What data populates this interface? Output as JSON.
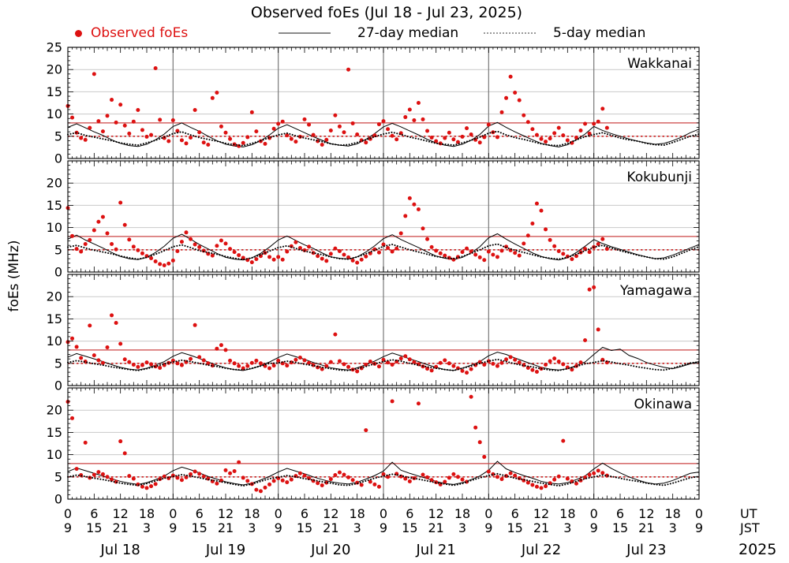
{
  "title": "Observed foEs (Jul 18 - Jul 23, 2025)",
  "legend": {
    "observed_label": "Observed foEs",
    "median27_label": "27-day median",
    "median5_label": "5-day median"
  },
  "colors": {
    "observed": "#dd1111",
    "median": "#000000",
    "threshold_solid": "#cc4444",
    "threshold_dotted": "#cc2222",
    "grid": "#c9c9c9",
    "day_grid": "#787878"
  },
  "axis": {
    "ylabel": "foEs (MHz)",
    "ut_unit": "UT",
    "jst_unit": "JST",
    "year": "2025",
    "ut_ticks": [
      "0",
      "6",
      "12",
      "18",
      "0",
      "6",
      "12",
      "18",
      "0",
      "6",
      "12",
      "18",
      "0",
      "6",
      "12",
      "18",
      "0",
      "6",
      "12",
      "18",
      "0",
      "6",
      "12",
      "18",
      "0"
    ],
    "jst_ticks": [
      "9",
      "15",
      "21",
      "3",
      "9",
      "15",
      "21",
      "3",
      "9",
      "15",
      "21",
      "3",
      "9",
      "15",
      "21",
      "3",
      "9",
      "15",
      "21",
      "3",
      "9",
      "15",
      "21",
      "3",
      "9"
    ],
    "day_labels": [
      "Jul 18",
      "Jul 19",
      "Jul 20",
      "Jul 21",
      "Jul 22",
      "Jul 23"
    ]
  },
  "chart_data": [
    {
      "station": "Wakkanai",
      "type": "scatter",
      "ylim": [
        0,
        25
      ],
      "ytick_labels": [
        0,
        5,
        10,
        15,
        20,
        25
      ],
      "threshold_solid_mhz": 8,
      "threshold_dotted_mhz": 5,
      "observed_step_hours": 1,
      "observed": [
        11.8,
        9.2,
        5.8,
        4.6,
        4.2,
        6.9,
        19.0,
        8.4,
        6.1,
        9.6,
        13.2,
        8.1,
        12.1,
        7.4,
        5.6,
        8.3,
        10.9,
        6.4,
        4.9,
        5.3,
        20.3,
        8.7,
        4.6,
        3.9,
        8.6,
        6.2,
        4.1,
        3.4,
        4.7,
        10.9,
        5.9,
        3.6,
        3.1,
        13.6,
        14.8,
        7.2,
        5.8,
        4.4,
        3.2,
        2.8,
        3.5,
        4.8,
        10.4,
        6.1,
        3.9,
        3.3,
        4.6,
        6.7,
        7.8,
        8.3,
        5.2,
        4.4,
        3.8,
        4.9,
        8.8,
        7.6,
        5.3,
        3.9,
        3.1,
        4.2,
        6.3,
        9.7,
        7.2,
        5.9,
        20.0,
        7.9,
        5.4,
        4.1,
        3.6,
        4.4,
        5.2,
        7.7,
        8.4,
        6.6,
        5.1,
        4.3,
        5.7,
        9.3,
        11.0,
        8.6,
        12.5,
        8.8,
        6.2,
        4.7,
        3.9,
        3.4,
        4.6,
        5.8,
        4.3,
        3.7,
        4.9,
        6.8,
        5.4,
        4.2,
        3.6,
        4.8,
        7.6,
        5.9,
        4.8,
        10.4,
        13.6,
        18.4,
        14.8,
        13.1,
        9.7,
        8.2,
        6.6,
        5.3,
        4.4,
        3.8,
        4.5,
        5.7,
        6.9,
        5.2,
        4.1,
        3.5,
        4.7,
        6.3,
        7.8,
        5.6,
        7.8,
        8.3,
        11.2,
        6.9
      ],
      "median_step_hours": 2,
      "median27": [
        7.0,
        7.8,
        6.9,
        6.0,
        5.2,
        4.2,
        3.4,
        2.9,
        2.7,
        3.2,
        4.2,
        5.5,
        7.2,
        8.0,
        7.0,
        6.1,
        5.0,
        4.0,
        3.2,
        2.8,
        2.6,
        3.1,
        4.0,
        5.3,
        6.8,
        7.6,
        6.7,
        5.8,
        4.9,
        4.1,
        3.3,
        3.0,
        2.8,
        3.3,
        4.3,
        5.6,
        7.1,
        7.9,
        7.1,
        6.2,
        5.3,
        4.3,
        3.5,
        3.0,
        2.7,
        3.2,
        4.1,
        5.4,
        7.3,
        8.1,
        7.0,
        6.0,
        5.1,
        4.2,
        3.4,
        2.9,
        2.6,
        3.1,
        4.2,
        5.5,
        7.2,
        6.3,
        5.6,
        5.0,
        4.4,
        3.9,
        3.5,
        3.2,
        3.4,
        4.0,
        4.8,
        5.8,
        6.6
      ],
      "median5": [
        5.4,
        5.8,
        5.2,
        4.8,
        4.4,
        4.0,
        3.5,
        3.2,
        3.0,
        3.5,
        4.1,
        4.8,
        5.6,
        6.0,
        5.3,
        4.7,
        4.3,
        3.9,
        3.4,
        3.1,
        2.9,
        3.4,
        4.0,
        4.7,
        5.3,
        5.7,
        5.1,
        4.6,
        4.2,
        3.8,
        3.3,
        3.0,
        3.1,
        3.6,
        4.2,
        4.9,
        5.5,
        5.9,
        5.4,
        4.8,
        4.4,
        3.9,
        3.4,
        3.2,
        3.0,
        3.5,
        4.1,
        4.8,
        5.7,
        6.1,
        5.3,
        4.7,
        4.3,
        3.8,
        3.3,
        3.0,
        2.9,
        3.4,
        4.2,
        4.9,
        5.4,
        5.8,
        5.2,
        4.6,
        4.2,
        3.9,
        3.4,
        3.1,
        3.0,
        3.6,
        4.3,
        5.0,
        5.5
      ]
    },
    {
      "station": "Kokubunji",
      "type": "scatter",
      "ylim": [
        0,
        25
      ],
      "ytick_labels": [
        0,
        5,
        10,
        15,
        20
      ],
      "threshold_solid_mhz": 8,
      "threshold_dotted_mhz": 5,
      "observed_step_hours": 1,
      "observed": [
        14.4,
        8.1,
        5.2,
        4.6,
        6.3,
        7.2,
        9.4,
        11.3,
        12.4,
        8.7,
        6.3,
        5.1,
        15.6,
        10.6,
        7.3,
        5.7,
        4.9,
        4.2,
        3.6,
        3.1,
        2.4,
        1.8,
        1.5,
        1.9,
        2.6,
        4.7,
        6.8,
        8.9,
        7.4,
        6.2,
        5.6,
        4.8,
        4.1,
        3.7,
        5.9,
        7.1,
        6.4,
        5.2,
        4.5,
        3.8,
        3.2,
        2.7,
        2.2,
        2.9,
        3.6,
        4.3,
        3.4,
        2.8,
        3.4,
        2.8,
        4.6,
        5.8,
        6.7,
        5.4,
        4.9,
        5.7,
        4.3,
        3.6,
        3.0,
        2.5,
        4.1,
        5.3,
        4.7,
        3.9,
        3.3,
        2.6,
        2.1,
        2.8,
        3.5,
        4.2,
        5.1,
        4.4,
        6.2,
        5.4,
        4.6,
        5.3,
        8.7,
        12.6,
        16.6,
        15.2,
        14.1,
        9.8,
        7.4,
        5.6,
        4.8,
        4.2,
        3.7,
        3.2,
        2.8,
        3.4,
        4.5,
        5.3,
        4.6,
        3.9,
        3.3,
        2.7,
        4.6,
        3.9,
        3.4,
        4.8,
        5.7,
        4.9,
        4.3,
        3.7,
        6.4,
        8.2,
        10.9,
        15.4,
        13.8,
        9.6,
        7.2,
        5.8,
        4.7,
        4.1,
        3.5,
        2.9,
        3.6,
        4.4,
        5.2,
        4.5,
        5.6,
        6.3,
        7.4,
        5.2
      ],
      "median_step_hours": 2,
      "median27": [
        7.4,
        8.3,
        7.2,
        6.3,
        5.4,
        4.4,
        3.5,
        3.0,
        2.8,
        3.3,
        4.4,
        5.8,
        7.6,
        8.5,
        7.4,
        6.2,
        5.2,
        4.2,
        3.3,
        2.9,
        2.7,
        3.2,
        4.2,
        5.6,
        7.2,
        8.1,
        7.1,
        6.1,
        5.3,
        4.3,
        3.4,
        3.1,
        2.9,
        3.4,
        4.5,
        5.9,
        7.5,
        8.4,
        7.3,
        6.4,
        5.5,
        4.5,
        3.6,
        3.1,
        2.8,
        3.3,
        4.3,
        5.7,
        7.7,
        8.6,
        7.4,
        6.3,
        5.3,
        4.3,
        3.5,
        3.0,
        2.7,
        3.2,
        4.4,
        5.8,
        7.3,
        6.4,
        5.7,
        5.1,
        4.5,
        3.9,
        3.4,
        3.0,
        3.2,
        3.8,
        4.6,
        5.4,
        6.2
      ],
      "median5": [
        5.6,
        6.0,
        5.4,
        4.9,
        4.5,
        4.1,
        3.6,
        3.2,
        2.9,
        3.3,
        4.0,
        4.8,
        5.7,
        6.1,
        5.5,
        4.8,
        4.4,
        4.0,
        3.5,
        3.1,
        2.8,
        3.2,
        3.9,
        4.7,
        5.5,
        5.9,
        5.3,
        4.7,
        4.3,
        3.9,
        3.4,
        3.0,
        2.9,
        3.4,
        4.1,
        4.9,
        5.8,
        6.2,
        5.6,
        5.0,
        4.5,
        4.0,
        3.5,
        3.2,
        3.0,
        3.5,
        4.2,
        5.0,
        5.9,
        6.3,
        5.5,
        4.9,
        4.4,
        3.9,
        3.4,
        3.1,
        2.9,
        3.3,
        4.0,
        4.8,
        5.6,
        6.0,
        5.4,
        4.8,
        4.3,
        3.8,
        3.4,
        3.0,
        2.9,
        3.4,
        4.2,
        5.0,
        5.7
      ]
    },
    {
      "station": "Yamagawa",
      "type": "scatter",
      "ylim": [
        0,
        25
      ],
      "ytick_labels": [
        0,
        5,
        10,
        15,
        20
      ],
      "threshold_solid_mhz": 8,
      "threshold_dotted_mhz": 5,
      "observed_step_hours": 1,
      "observed": [
        9.8,
        10.6,
        8.7,
        6.2,
        5.4,
        13.5,
        6.8,
        5.7,
        5.1,
        8.6,
        15.8,
        14.1,
        9.4,
        5.9,
        5.3,
        4.7,
        4.2,
        4.6,
        5.2,
        4.8,
        4.3,
        4.0,
        4.6,
        5.1,
        5.6,
        5.0,
        4.6,
        5.3,
        6.0,
        13.6,
        6.4,
        5.7,
        5.0,
        4.5,
        8.3,
        9.1,
        8.0,
        5.6,
        5.0,
        4.4,
        3.9,
        4.4,
        5.1,
        5.6,
        5.0,
        4.4,
        3.9,
        4.5,
        5.6,
        5.0,
        4.5,
        5.2,
        5.8,
        6.3,
        5.7,
        5.1,
        4.6,
        4.1,
        3.7,
        4.4,
        5.3,
        11.5,
        5.5,
        4.8,
        4.2,
        3.6,
        3.2,
        3.9,
        4.7,
        5.4,
        4.9,
        4.3,
        5.8,
        5.2,
        4.7,
        5.4,
        6.1,
        6.6,
        5.9,
        5.3,
        4.8,
        4.3,
        3.8,
        3.4,
        4.2,
        5.1,
        5.7,
        5.0,
        4.4,
        3.9,
        3.3,
        2.9,
        3.7,
        4.6,
        5.3,
        4.7,
        5.5,
        4.9,
        4.4,
        5.1,
        5.9,
        6.4,
        5.8,
        5.2,
        4.6,
        4.0,
        3.5,
        3.1,
        3.8,
        4.7,
        5.5,
        6.1,
        5.4,
        4.8,
        4.1,
        3.6,
        4.4,
        5.2,
        10.2,
        21.6,
        22.1,
        12.6,
        5.8,
        5.2
      ],
      "median_step_hours": 2,
      "median27": [
        6.4,
        7.2,
        6.6,
        6.0,
        5.4,
        4.7,
        4.1,
        3.7,
        3.5,
        3.9,
        4.6,
        5.4,
        6.6,
        7.4,
        6.8,
        6.1,
        5.3,
        4.6,
        4.0,
        3.6,
        3.4,
        3.8,
        4.5,
        5.3,
        6.3,
        7.1,
        6.5,
        5.9,
        5.2,
        4.6,
        4.0,
        3.7,
        3.5,
        4.0,
        4.7,
        5.5,
        6.5,
        7.3,
        6.7,
        6.0,
        5.4,
        4.7,
        4.1,
        3.6,
        3.4,
        3.9,
        4.6,
        5.4,
        6.7,
        7.5,
        7.0,
        6.2,
        5.5,
        4.8,
        4.1,
        3.7,
        3.5,
        3.8,
        4.5,
        5.3,
        7.0,
        8.6,
        7.9,
        8.2,
        6.8,
        6.1,
        5.2,
        4.6,
        4.1,
        3.8,
        4.3,
        4.9,
        5.4
      ],
      "median5": [
        5.2,
        5.6,
        5.3,
        4.9,
        4.6,
        4.2,
        3.9,
        3.6,
        3.4,
        3.8,
        4.3,
        4.9,
        5.3,
        5.7,
        5.4,
        5.0,
        4.6,
        4.3,
        3.9,
        3.6,
        3.5,
        3.9,
        4.4,
        5.0,
        5.1,
        5.5,
        5.2,
        4.8,
        4.5,
        4.1,
        3.8,
        3.5,
        3.4,
        3.8,
        4.3,
        4.9,
        5.4,
        5.8,
        5.5,
        5.0,
        4.6,
        4.2,
        3.9,
        3.6,
        3.4,
        3.9,
        4.4,
        5.0,
        5.5,
        5.9,
        5.4,
        4.9,
        4.5,
        4.2,
        3.8,
        3.5,
        3.4,
        3.8,
        4.3,
        4.9,
        5.2,
        5.6,
        5.3,
        4.9,
        4.6,
        4.2,
        3.9,
        3.6,
        3.5,
        3.9,
        4.5,
        5.1,
        5.3
      ]
    },
    {
      "station": "Okinawa",
      "type": "scatter",
      "ylim": [
        0,
        25
      ],
      "ytick_labels": [
        0,
        5,
        10,
        15,
        20
      ],
      "threshold_solid_mhz": 8,
      "threshold_dotted_mhz": 5,
      "observed_step_hours": 1,
      "observed": [
        21.9,
        18.2,
        6.8,
        5.4,
        12.7,
        4.8,
        5.5,
        6.1,
        5.6,
        5.0,
        4.4,
        3.9,
        13.0,
        10.3,
        5.2,
        4.6,
        3.3,
        2.8,
        2.5,
        2.9,
        3.4,
        4.5,
        5.1,
        4.7,
        5.3,
        4.8,
        4.3,
        4.9,
        5.6,
        6.2,
        5.7,
        5.1,
        4.6,
        4.0,
        3.5,
        4.2,
        6.5,
        5.8,
        6.3,
        8.3,
        4.8,
        4.1,
        3.4,
        2.1,
        1.8,
        2.6,
        3.3,
        4.1,
        4.7,
        4.2,
        3.8,
        4.4,
        5.2,
        5.8,
        5.3,
        4.7,
        4.1,
        3.6,
        3.1,
        3.7,
        4.5,
        5.4,
        6.0,
        5.5,
        4.9,
        4.3,
        3.7,
        3.2,
        15.5,
        3.9,
        3.3,
        2.8,
        5.6,
        5.0,
        22.0,
        5.7,
        5.1,
        4.6,
        4.0,
        4.7,
        21.5,
        5.5,
        4.9,
        4.3,
        3.8,
        3.3,
        3.9,
        4.8,
        5.6,
        5.0,
        4.4,
        3.9,
        23.0,
        16.1,
        12.8,
        9.5,
        6.2,
        5.6,
        5.0,
        4.5,
        5.2,
        5.8,
        5.3,
        4.7,
        4.2,
        3.7,
        3.2,
        2.8,
        2.5,
        2.9,
        3.6,
        4.4,
        5.1,
        13.1,
        4.6,
        4.0,
        3.5,
        4.2,
        4.9,
        5.5,
        5.8,
        6.4,
        5.9,
        5.3
      ],
      "median_step_hours": 2,
      "median27": [
        6.2,
        7.0,
        6.4,
        5.8,
        5.2,
        4.6,
        4.0,
        3.6,
        3.3,
        3.7,
        4.4,
        5.2,
        6.4,
        7.2,
        6.6,
        5.9,
        5.1,
        4.5,
        3.9,
        3.5,
        3.2,
        3.6,
        4.3,
        5.1,
        6.1,
        6.9,
        6.3,
        5.7,
        5.0,
        4.4,
        3.9,
        3.6,
        3.4,
        3.8,
        4.5,
        5.3,
        6.3,
        8.3,
        6.5,
        5.8,
        5.2,
        4.6,
        4.0,
        3.5,
        3.3,
        3.7,
        4.4,
        5.2,
        6.5,
        8.5,
        6.8,
        6.0,
        5.3,
        4.7,
        4.0,
        3.6,
        3.4,
        3.7,
        4.4,
        5.2,
        6.8,
        8.1,
        6.9,
        5.9,
        5.0,
        4.3,
        3.7,
        3.4,
        3.6,
        4.2,
        5.0,
        5.8,
        6.1
      ],
      "median5": [
        5.0,
        5.4,
        5.1,
        4.7,
        4.4,
        4.0,
        3.6,
        3.3,
        3.1,
        3.5,
        4.1,
        4.7,
        5.1,
        5.5,
        5.2,
        4.8,
        4.4,
        4.1,
        3.7,
        3.3,
        3.0,
        3.4,
        4.0,
        4.6,
        4.9,
        5.3,
        5.0,
        4.6,
        4.3,
        3.9,
        3.6,
        3.2,
        3.1,
        3.5,
        4.1,
        4.7,
        5.2,
        5.6,
        5.3,
        4.8,
        4.5,
        4.1,
        3.7,
        3.4,
        3.1,
        3.5,
        4.2,
        4.8,
        5.3,
        5.7,
        5.2,
        4.7,
        4.4,
        4.0,
        3.6,
        3.3,
        3.0,
        3.4,
        4.0,
        4.6,
        5.0,
        5.4,
        5.1,
        4.7,
        4.3,
        4.0,
        3.6,
        3.3,
        3.1,
        3.6,
        4.2,
        4.8,
        5.1
      ]
    }
  ]
}
